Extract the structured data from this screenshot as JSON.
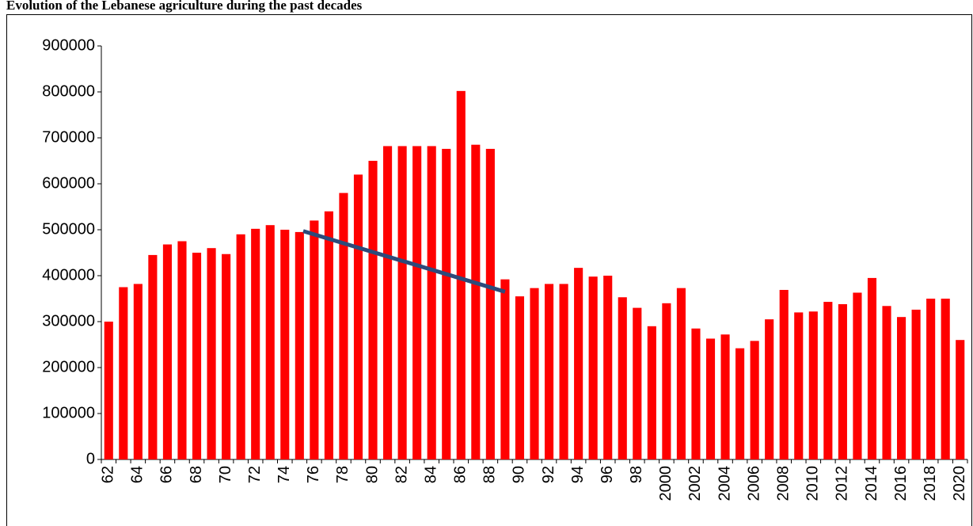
{
  "chart_data": {
    "type": "bar",
    "title": "Evolution of the Lebanese agriculture during the past decades",
    "categories": [
      "62",
      null,
      "64",
      null,
      "66",
      null,
      "68",
      null,
      "70",
      null,
      "72",
      null,
      "74",
      null,
      "76",
      null,
      "78",
      null,
      "80",
      null,
      "82",
      null,
      "84",
      null,
      "86",
      null,
      "88",
      null,
      "90",
      null,
      "92",
      null,
      "94",
      null,
      "96",
      null,
      "98",
      null,
      "2000",
      null,
      "2002",
      null,
      "2004",
      null,
      "2006",
      null,
      "2008",
      null,
      "2010",
      null,
      "2012",
      null,
      "2014",
      null,
      "2016",
      null,
      "2018",
      null,
      "2020"
    ],
    "values": [
      300000,
      375000,
      382000,
      445000,
      468000,
      475000,
      450000,
      460000,
      447000,
      490000,
      502000,
      510000,
      500000,
      495000,
      520000,
      540000,
      580000,
      620000,
      650000,
      682000,
      682000,
      682000,
      682000,
      676000,
      802000,
      685000,
      676000,
      392000,
      355000,
      373000,
      382000,
      382000,
      417000,
      398000,
      400000,
      353000,
      330000,
      290000,
      340000,
      373000,
      285000,
      263000,
      272000,
      242000,
      258000,
      305000,
      369000,
      320000,
      322000,
      343000,
      338000,
      363000,
      395000,
      334000,
      310000,
      326000,
      350000,
      350000,
      260000
    ],
    "color": "#ff0000",
    "trend": {
      "values": [
        497000,
        365000
      ],
      "color": "#2e4a7a"
    },
    "ylim": [
      0,
      900000
    ],
    "yticks": [
      0,
      100000,
      200000,
      300000,
      400000,
      500000,
      600000,
      700000,
      800000,
      900000
    ],
    "grid": false
  }
}
